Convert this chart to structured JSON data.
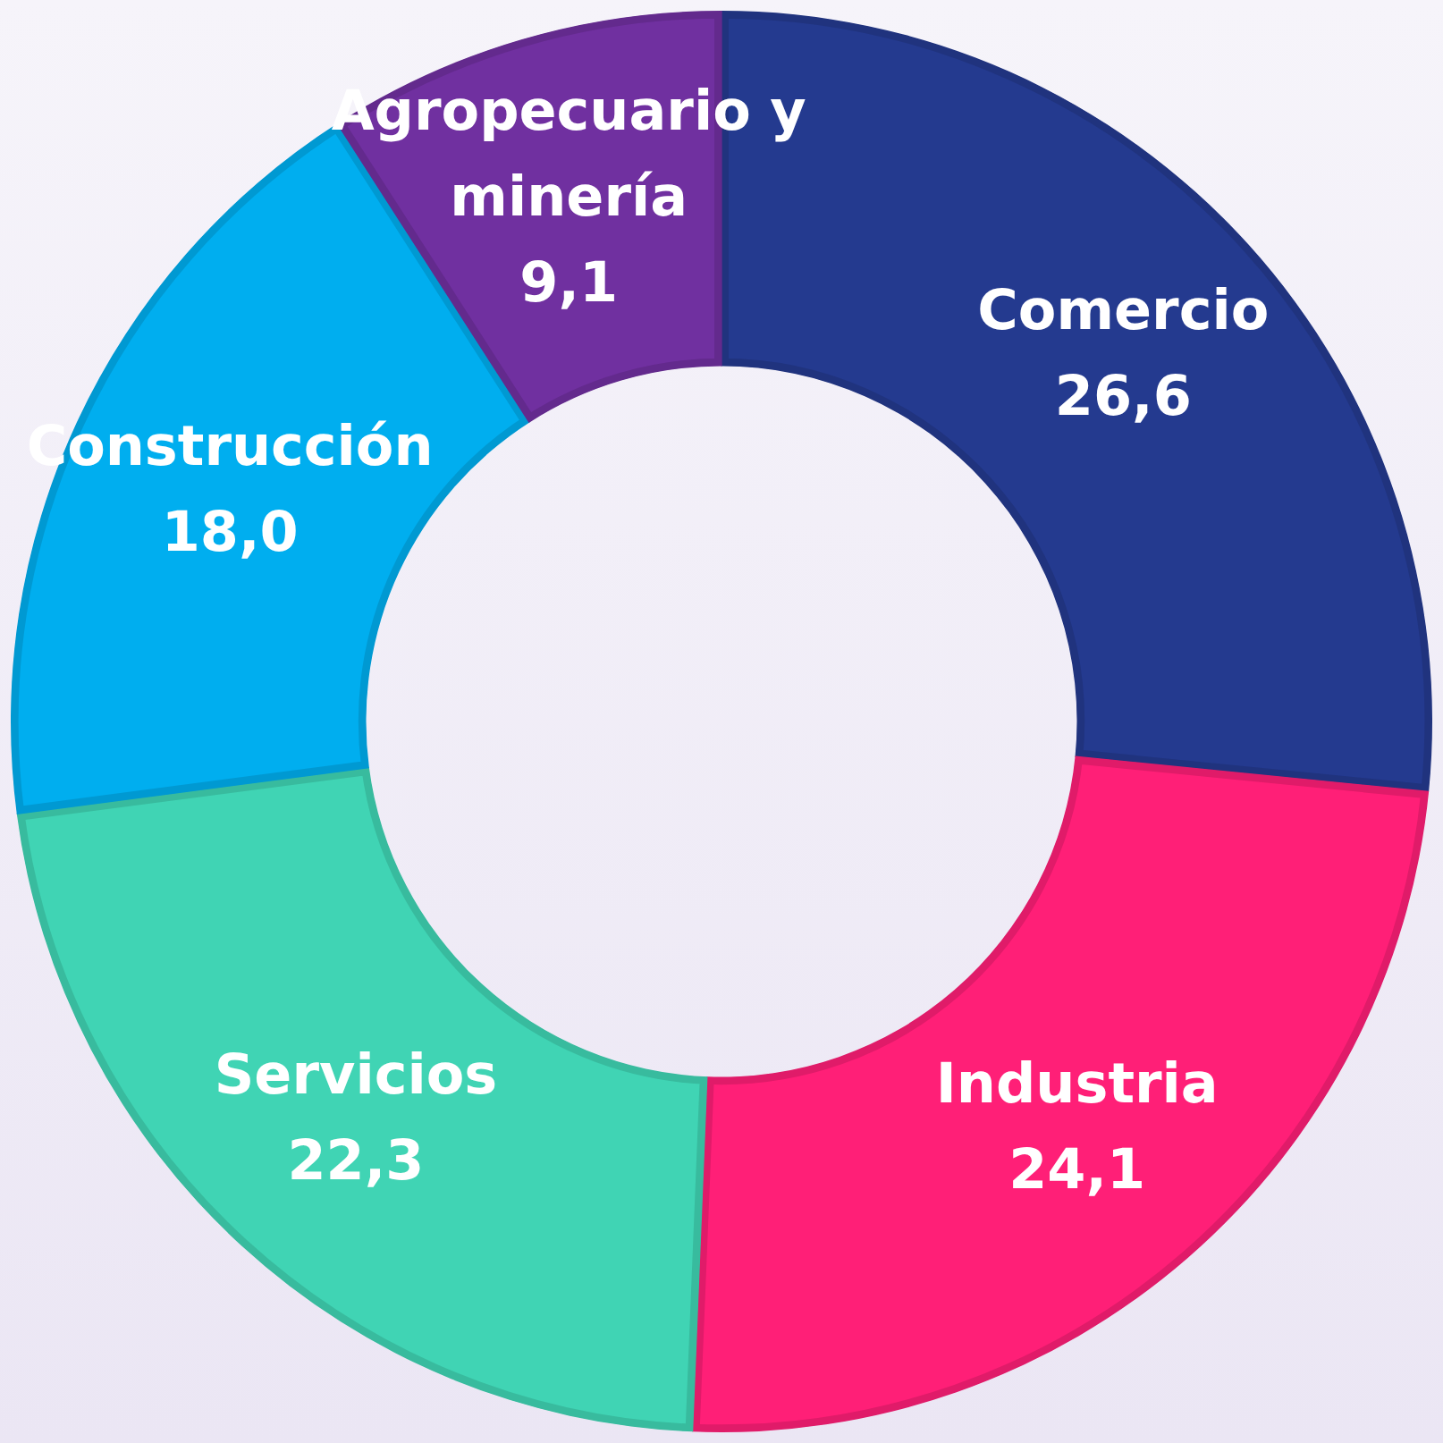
{
  "chart_data": {
    "type": "donut",
    "categories": [
      "Comercio",
      "Industria",
      "Servicios",
      "Construcción",
      "Agropecuario y minería"
    ],
    "values": [
      26.6,
      24.1,
      22.3,
      18.0,
      9.1
    ],
    "value_labels": [
      "26,6",
      "24,1",
      "22,3",
      "18,0",
      "9,1"
    ],
    "colors": [
      "#243a8f",
      "#ff1f77",
      "#40d4b4",
      "#00aeef",
      "#7030a0"
    ],
    "legend": false
  }
}
